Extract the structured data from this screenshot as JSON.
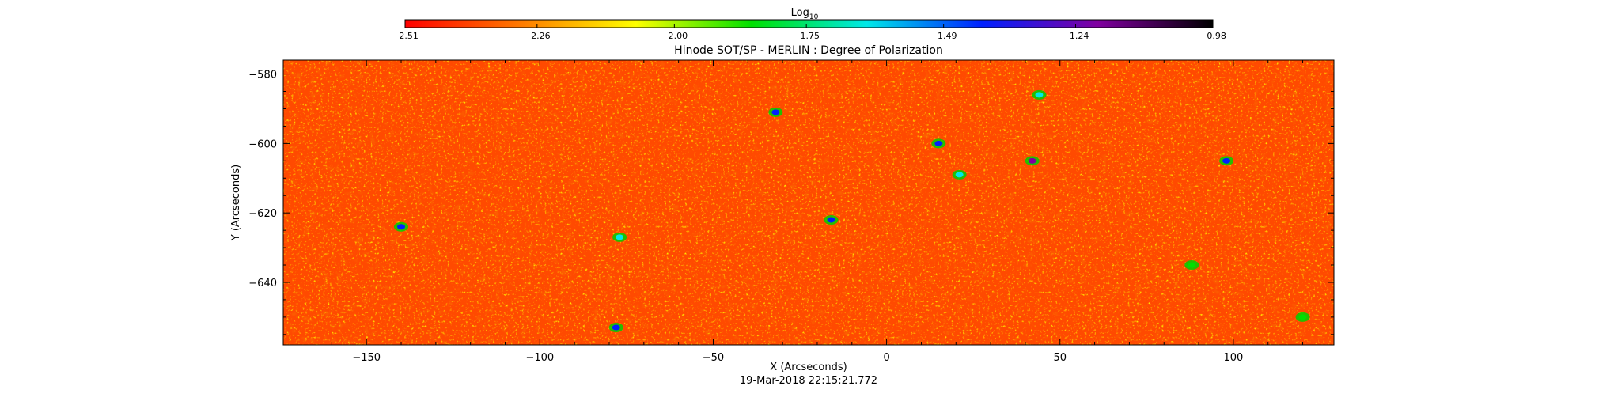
{
  "chart_data": {
    "type": "heatmap",
    "title": "Hinode SOT/SP - MERLIN : Degree of Polarization",
    "xlabel": "X (Arcseconds)",
    "ylabel": "Y (Arcseconds)",
    "xlim": [
      -174,
      129
    ],
    "ylim": [
      -658,
      -576
    ],
    "x_ticks": [
      -150,
      -100,
      -50,
      0,
      50,
      100
    ],
    "x_tick_labels": [
      "−150",
      "−100",
      "−50",
      "0",
      "50",
      "100"
    ],
    "y_ticks": [
      -580,
      -600,
      -620,
      -640
    ],
    "y_tick_labels": [
      "−580",
      "−600",
      "−620",
      "−640"
    ],
    "timestamp": "19-Mar-2018 22:15:21.772",
    "colorbar": {
      "label_base": "Log",
      "label_sub": "10",
      "range": [
        -2.51,
        -0.98
      ],
      "tick_values": [
        -2.51,
        -2.26,
        -2.0,
        -1.75,
        -1.49,
        -1.24,
        -0.98
      ],
      "tick_labels": [
        "−2.51",
        "−2.26",
        "−2.00",
        "−1.75",
        "−1.49",
        "−1.24",
        "−0.98"
      ],
      "colors": [
        "#ff0000",
        "#ff7a00",
        "#ffff00",
        "#00e000",
        "#00e8e8",
        "#0020ff",
        "#8000a0",
        "#000000"
      ]
    },
    "features": [
      {
        "x": 42,
        "y": -605,
        "value": -1.3
      },
      {
        "x": 15,
        "y": -600,
        "value": -1.4
      },
      {
        "x": -16,
        "y": -622,
        "value": -1.5
      },
      {
        "x": -32,
        "y": -591,
        "value": -1.5
      },
      {
        "x": -140,
        "y": -624,
        "value": -1.5
      },
      {
        "x": -78,
        "y": -653,
        "value": -1.4
      },
      {
        "x": 98,
        "y": -605,
        "value": -1.5
      },
      {
        "x": -77,
        "y": -627,
        "value": -1.6
      },
      {
        "x": 44,
        "y": -586,
        "value": -1.7
      },
      {
        "x": 21,
        "y": -609,
        "value": -1.7
      },
      {
        "x": 88,
        "y": -635,
        "value": -1.8
      },
      {
        "x": 120,
        "y": -650,
        "value": -1.8
      }
    ]
  }
}
